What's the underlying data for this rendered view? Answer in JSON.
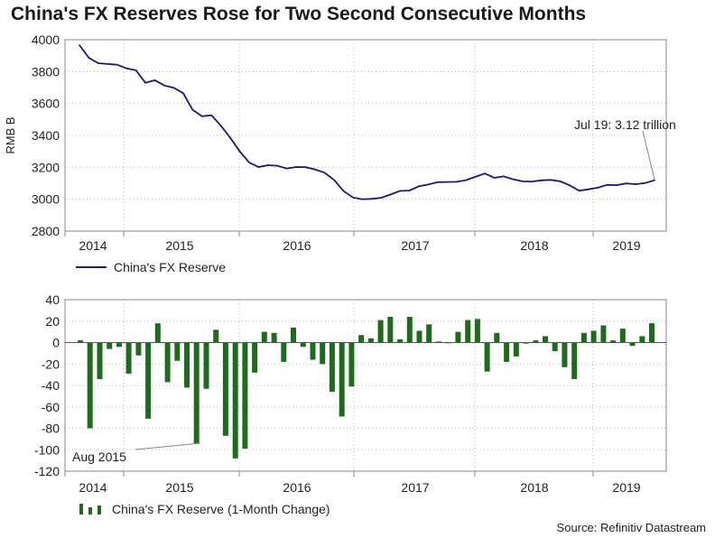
{
  "title": "China's FX Reserves Rose for Two Second Consecutive Months",
  "source": "Source: Refinitiv Datastream",
  "colors": {
    "line": "#1a1a6e",
    "bar": "#1e6b1e",
    "grid": "#b8b8b8",
    "axis": "#888888"
  },
  "chart_data": [
    {
      "type": "line",
      "ylabel": "RMB B",
      "ylim": [
        2800,
        4000
      ],
      "yticks": [
        2800,
        3000,
        3200,
        3400,
        3600,
        3800,
        4000
      ],
      "year_labels": [
        "2014",
        "2015",
        "2016",
        "2017",
        "2018",
        "2019"
      ],
      "legend": "China's FX Reserve",
      "annotation": "Jul 19: 3.12 trillion",
      "series": [
        {
          "name": "China's FX Reserve",
          "values": [
            3966,
            3887,
            3853,
            3848,
            3843,
            3820,
            3808,
            3730,
            3746,
            3713,
            3699,
            3665,
            3561,
            3520,
            3526,
            3461,
            3385,
            3300,
            3230,
            3202,
            3213,
            3210,
            3192,
            3202,
            3201,
            3186,
            3166,
            3121,
            3052,
            3011,
            3000,
            3002,
            3009,
            3029,
            3052,
            3054,
            3081,
            3092,
            3107,
            3108,
            3109,
            3119,
            3140,
            3161,
            3134,
            3143,
            3125,
            3112,
            3111,
            3118,
            3121,
            3112,
            3087,
            3053,
            3062,
            3072,
            3090,
            3088,
            3099,
            3094,
            3101,
            3119
          ]
        }
      ]
    },
    {
      "type": "bar",
      "ylim": [
        -120,
        40
      ],
      "yticks": [
        -120,
        -100,
        -80,
        -60,
        -40,
        -20,
        0,
        20,
        40
      ],
      "year_labels": [
        "2014",
        "2015",
        "2016",
        "2017",
        "2018",
        "2019"
      ],
      "legend": "China's FX Reserve (1-Month Change)",
      "annotation": "Aug 2015",
      "series": [
        {
          "name": "China's FX Reserve (1-Month Change)",
          "values": [
            2,
            -80,
            -34,
            -6,
            -4,
            -29,
            -12,
            -71,
            18,
            -37,
            -17,
            -42,
            -94,
            -43,
            12,
            -87,
            -108,
            -99,
            -28,
            10,
            9,
            -18,
            14,
            -4,
            -16,
            -20,
            -46,
            -69,
            -41,
            7,
            4,
            21,
            24,
            3,
            24,
            11,
            17,
            1,
            0,
            10,
            21,
            22,
            -27,
            9,
            -18,
            -13,
            -1,
            2,
            6,
            -8,
            -23,
            -34,
            9,
            11,
            16,
            2,
            13,
            -3,
            6,
            18
          ]
        }
      ]
    }
  ]
}
